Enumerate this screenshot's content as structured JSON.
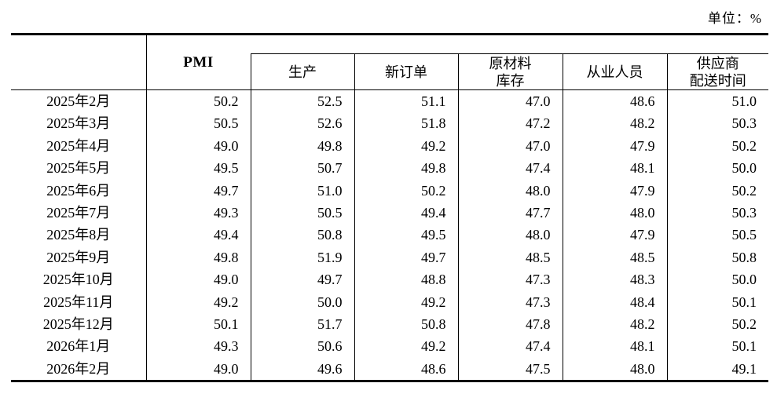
{
  "unit_label": "单位：%",
  "table": {
    "corner_label": "",
    "pmi_header": "PMI",
    "sub_headers": [
      "生产",
      "新订单",
      "原材料\n库存",
      "从业人员",
      "供应商\n配送时间"
    ],
    "rows": [
      {
        "month": "2025年2月",
        "values": [
          "50.2",
          "52.5",
          "51.1",
          "47.0",
          "48.6",
          "51.0"
        ]
      },
      {
        "month": "2025年3月",
        "values": [
          "50.5",
          "52.6",
          "51.8",
          "47.2",
          "48.2",
          "50.3"
        ]
      },
      {
        "month": "2025年4月",
        "values": [
          "49.0",
          "49.8",
          "49.2",
          "47.0",
          "47.9",
          "50.2"
        ]
      },
      {
        "month": "2025年5月",
        "values": [
          "49.5",
          "50.7",
          "49.8",
          "47.4",
          "48.1",
          "50.0"
        ]
      },
      {
        "month": "2025年6月",
        "values": [
          "49.7",
          "51.0",
          "50.2",
          "48.0",
          "47.9",
          "50.2"
        ]
      },
      {
        "month": "2025年7月",
        "values": [
          "49.3",
          "50.5",
          "49.4",
          "47.7",
          "48.0",
          "50.3"
        ]
      },
      {
        "month": "2025年8月",
        "values": [
          "49.4",
          "50.8",
          "49.5",
          "48.0",
          "47.9",
          "50.5"
        ]
      },
      {
        "month": "2025年9月",
        "values": [
          "49.8",
          "51.9",
          "49.7",
          "48.5",
          "48.5",
          "50.8"
        ]
      },
      {
        "month": "2025年10月",
        "values": [
          "49.0",
          "49.7",
          "48.8",
          "47.3",
          "48.3",
          "50.0"
        ]
      },
      {
        "month": "2025年11月",
        "values": [
          "49.2",
          "50.0",
          "49.2",
          "47.3",
          "48.4",
          "50.1"
        ]
      },
      {
        "month": "2025年12月",
        "values": [
          "50.1",
          "51.7",
          "50.8",
          "47.8",
          "48.2",
          "50.2"
        ]
      },
      {
        "month": "2026年1月",
        "values": [
          "49.3",
          "50.6",
          "49.2",
          "47.4",
          "48.1",
          "50.1"
        ]
      },
      {
        "month": "2026年2月",
        "values": [
          "49.0",
          "49.6",
          "48.6",
          "47.5",
          "48.0",
          "49.1"
        ]
      }
    ]
  }
}
